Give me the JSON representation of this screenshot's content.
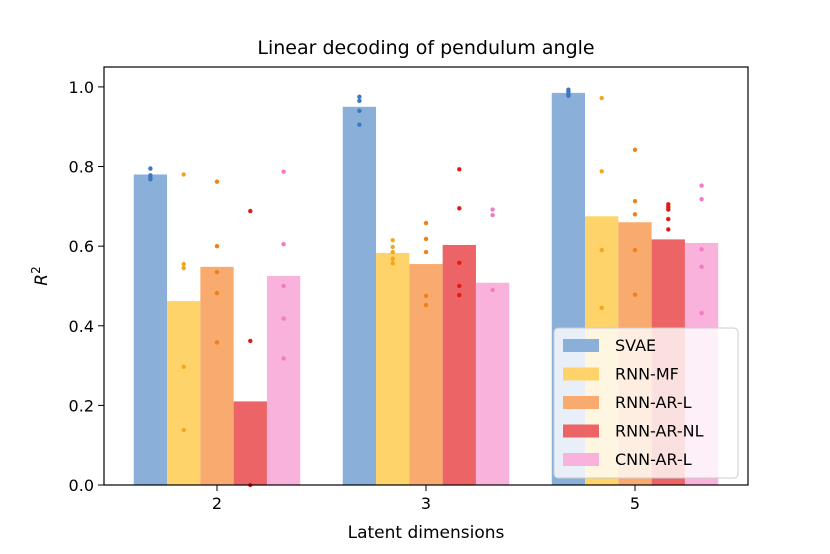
{
  "chart_data": {
    "type": "bar",
    "title": "Linear decoding of pendulum angle",
    "xlabel": "Latent dimensions",
    "ylabel": "R",
    "ylabel_superscript": "2",
    "categories": [
      "2",
      "3",
      "5"
    ],
    "ylim": [
      0,
      1.05
    ],
    "yticks": [
      "0.0",
      "0.2",
      "0.4",
      "0.6",
      "0.8",
      "1.0"
    ],
    "grid": false,
    "legend_position": "lower-right",
    "series": [
      {
        "name": "SVAE",
        "color": "#8aafd9",
        "dot_color": "#3a78c2",
        "values": [
          0.78,
          0.95,
          0.985
        ],
        "points": [
          [
            0.795,
            0.778,
            0.772,
            0.768
          ],
          [
            0.975,
            0.965,
            0.94,
            0.905
          ],
          [
            0.993,
            0.988,
            0.982,
            0.978
          ]
        ]
      },
      {
        "name": "RNN-MF",
        "color": "#fdd36a",
        "dot_color": "#f4a71c",
        "values": [
          0.462,
          0.583,
          0.675
        ],
        "points": [
          [
            0.78,
            0.555,
            0.545,
            0.297,
            0.138
          ],
          [
            0.615,
            0.598,
            0.585,
            0.568,
            0.557
          ],
          [
            0.972,
            0.788,
            0.59,
            0.445
          ]
        ]
      },
      {
        "name": "RNN-AR-L",
        "color": "#f9aa6e",
        "dot_color": "#f07f1e",
        "values": [
          0.548,
          0.555,
          0.66
        ],
        "points": [
          [
            0.762,
            0.6,
            0.535,
            0.482,
            0.358
          ],
          [
            0.658,
            0.618,
            0.585,
            0.475,
            0.452
          ],
          [
            0.842,
            0.713,
            0.68,
            0.59,
            0.478
          ]
        ]
      },
      {
        "name": "RNN-AR-NL",
        "color": "#ec6466",
        "dot_color": "#e01a14",
        "values": [
          0.21,
          0.603,
          0.617
        ],
        "points": [
          [
            0.688,
            0.362,
            0.0
          ],
          [
            0.793,
            0.695,
            0.558,
            0.5,
            0.477
          ],
          [
            0.705,
            0.698,
            0.692,
            0.668,
            0.642
          ]
        ]
      },
      {
        "name": "CNN-AR-L",
        "color": "#f9b2dc",
        "dot_color": "#f27bc4",
        "values": [
          0.525,
          0.508,
          0.608
        ],
        "points": [
          [
            0.787,
            0.605,
            0.5,
            0.418,
            0.318
          ],
          [
            0.692,
            0.678,
            0.49
          ],
          [
            0.752,
            0.718,
            0.592,
            0.548,
            0.432
          ]
        ]
      }
    ]
  }
}
